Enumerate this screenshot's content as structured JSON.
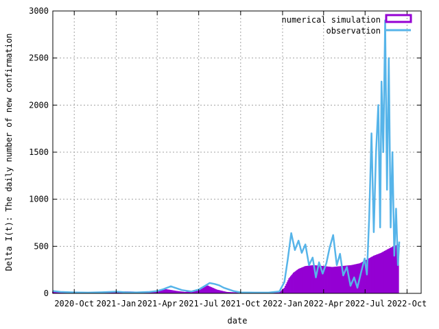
{
  "chart_data": {
    "type": "bar",
    "xlabel": "date",
    "ylabel": "Delta I(t): The daily number of new confirmation",
    "ylim": [
      0,
      3000
    ],
    "xlim": [
      "2020-08-15",
      "2022-11-01"
    ],
    "grid": true,
    "legend_position": "top-right",
    "y_ticks": [
      0,
      500,
      1000,
      1500,
      2000,
      2500,
      3000
    ],
    "x_ticks": [
      {
        "date": "2020-10-01",
        "label": "2020-Oct"
      },
      {
        "date": "2021-01-01",
        "label": "2021-Jan"
      },
      {
        "date": "2021-04-01",
        "label": "2021-Apr"
      },
      {
        "date": "2021-07-01",
        "label": "2021-Jul"
      },
      {
        "date": "2021-10-01",
        "label": "2021-Oct"
      },
      {
        "date": "2022-01-01",
        "label": "2022-Jan"
      },
      {
        "date": "2022-04-01",
        "label": "2022-Apr"
      },
      {
        "date": "2022-07-01",
        "label": "2022-Jul"
      },
      {
        "date": "2022-10-01",
        "label": "2022-Oct"
      }
    ],
    "series": [
      {
        "name": "numerical simulation",
        "style": "bars",
        "color": "#9400d3",
        "x": [
          "2020-08-15",
          "2020-09-01",
          "2020-10-01",
          "2020-11-01",
          "2020-12-01",
          "2021-01-01",
          "2021-02-01",
          "2021-03-01",
          "2021-04-01",
          "2021-04-20",
          "2021-05-15",
          "2021-06-01",
          "2021-07-01",
          "2021-07-20",
          "2021-08-10",
          "2021-09-01",
          "2021-10-01",
          "2021-11-01",
          "2021-12-01",
          "2021-12-25",
          "2022-01-05",
          "2022-01-15",
          "2022-01-25",
          "2022-02-05",
          "2022-02-20",
          "2022-03-10",
          "2022-04-01",
          "2022-04-20",
          "2022-05-10",
          "2022-06-01",
          "2022-06-20",
          "2022-07-05",
          "2022-07-20",
          "2022-08-05",
          "2022-08-20",
          "2022-09-01",
          "2022-09-12"
        ],
        "values": [
          20,
          15,
          12,
          12,
          15,
          22,
          20,
          15,
          22,
          45,
          25,
          15,
          30,
          85,
          40,
          15,
          8,
          8,
          8,
          10,
          60,
          160,
          220,
          260,
          290,
          300,
          290,
          280,
          290,
          300,
          320,
          360,
          400,
          430,
          470,
          500,
          520
        ]
      },
      {
        "name": "observation",
        "style": "line",
        "color": "#56b4e9",
        "x": [
          "2020-08-15",
          "2020-09-01",
          "2020-10-01",
          "2020-11-01",
          "2020-12-01",
          "2021-01-01",
          "2021-01-20",
          "2021-02-15",
          "2021-03-15",
          "2021-04-01",
          "2021-04-15",
          "2021-05-01",
          "2021-05-10",
          "2021-05-25",
          "2021-06-15",
          "2021-07-01",
          "2021-07-15",
          "2021-07-25",
          "2021-08-05",
          "2021-08-15",
          "2021-08-25",
          "2021-09-15",
          "2021-10-01",
          "2021-11-01",
          "2021-12-01",
          "2021-12-25",
          "2022-01-05",
          "2022-01-12",
          "2022-01-20",
          "2022-01-28",
          "2022-02-05",
          "2022-02-12",
          "2022-02-20",
          "2022-02-28",
          "2022-03-08",
          "2022-03-15",
          "2022-03-22",
          "2022-03-30",
          "2022-04-07",
          "2022-04-14",
          "2022-04-22",
          "2022-04-30",
          "2022-05-07",
          "2022-05-14",
          "2022-05-22",
          "2022-05-30",
          "2022-06-07",
          "2022-06-14",
          "2022-06-22",
          "2022-06-30",
          "2022-07-05",
          "2022-07-10",
          "2022-07-15",
          "2022-07-20",
          "2022-07-25",
          "2022-07-30",
          "2022-08-03",
          "2022-08-06",
          "2022-08-10",
          "2022-08-14",
          "2022-08-18",
          "2022-08-22",
          "2022-08-26",
          "2022-08-30",
          "2022-09-03",
          "2022-09-07",
          "2022-09-11",
          "2022-09-14"
        ],
        "values": [
          25,
          15,
          10,
          8,
          12,
          18,
          12,
          10,
          15,
          25,
          45,
          75,
          60,
          35,
          20,
          40,
          80,
          110,
          100,
          85,
          60,
          25,
          10,
          8,
          8,
          20,
          120,
          350,
          640,
          460,
          560,
          430,
          520,
          300,
          380,
          170,
          330,
          210,
          320,
          480,
          620,
          300,
          420,
          190,
          280,
          80,
          170,
          60,
          220,
          370,
          200,
          800,
          1700,
          650,
          1500,
          2000,
          700,
          2250,
          1500,
          2900,
          1100,
          2500,
          700,
          1500,
          400,
          900,
          300,
          550
        ]
      }
    ]
  }
}
